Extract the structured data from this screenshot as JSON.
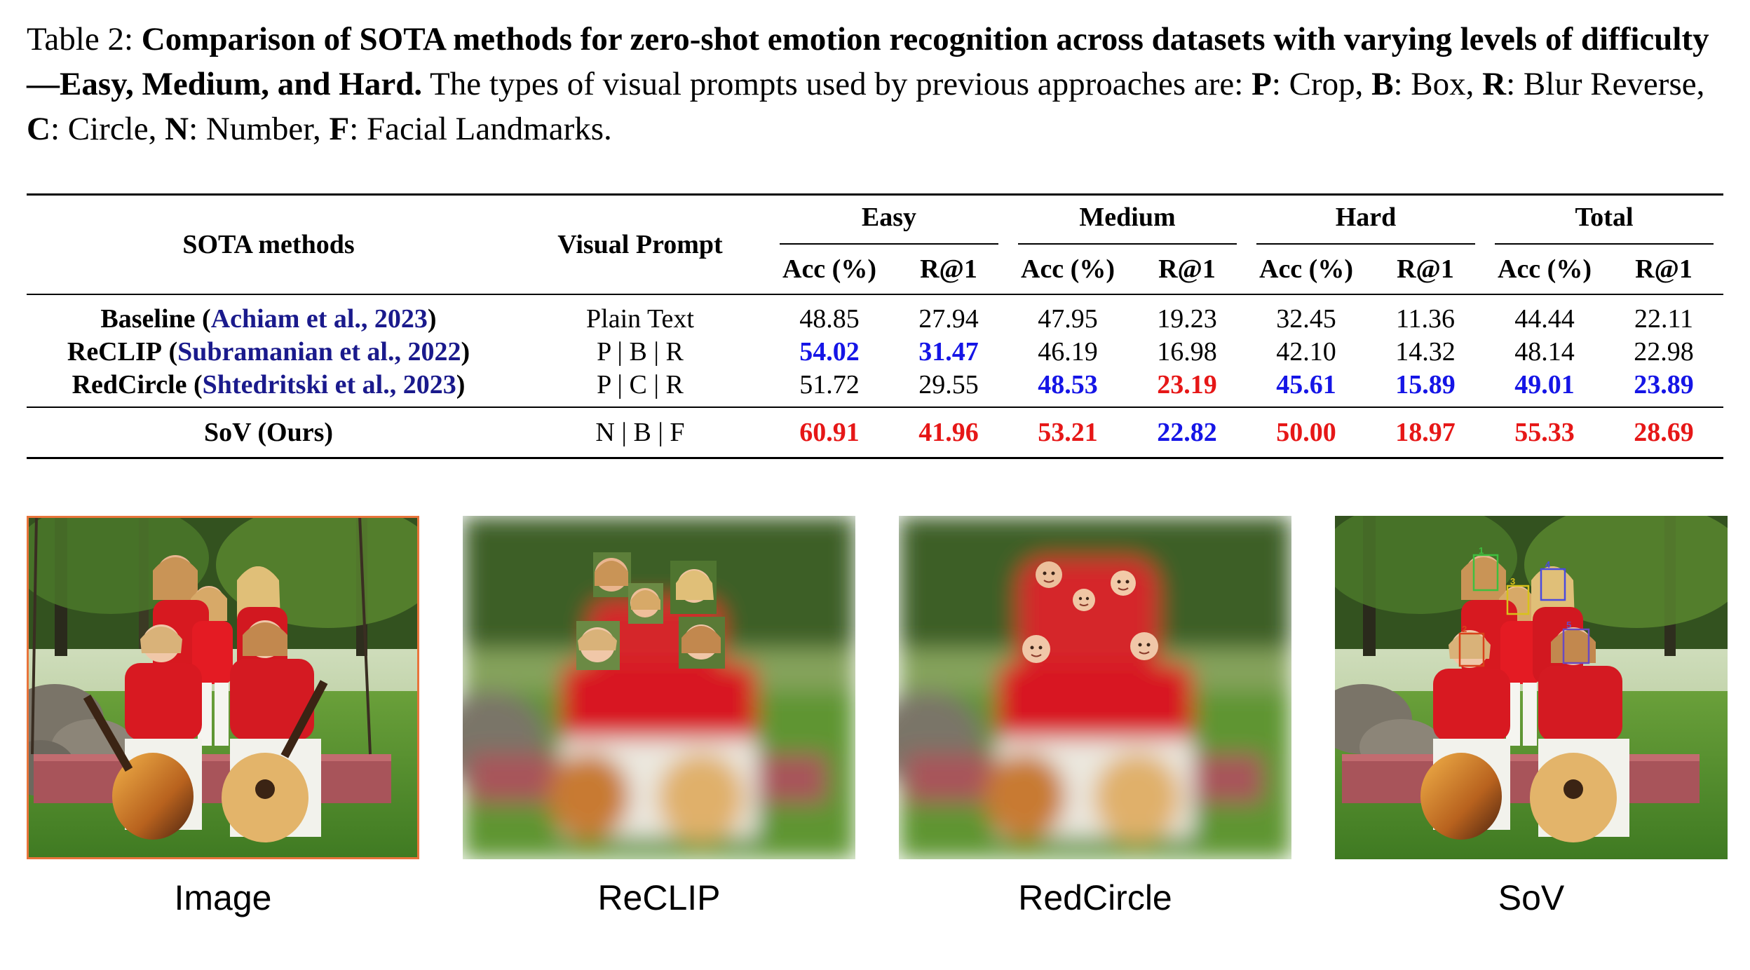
{
  "caption": {
    "label": "Table 2:",
    "bold_text": "Comparison of SOTA methods for zero-shot emotion recognition across datasets with varying levels of difficulty—Easy, Medium, and Hard.",
    "intro_text": "The types of visual prompts used by previous approaches are:",
    "prompt_types": [
      {
        "key": "P",
        "desc": ": Crop,"
      },
      {
        "key": "B",
        "desc": ": Box,"
      },
      {
        "key": "R",
        "desc": ": Blur Reverse,"
      },
      {
        "key": "C",
        "desc": ": Circle,"
      },
      {
        "key": "N",
        "desc": ": Number,"
      },
      {
        "key": "F",
        "desc": ": Facial Landmarks."
      }
    ]
  },
  "table": {
    "col_method": "SOTA methods",
    "col_prompt": "Visual Prompt",
    "groups": [
      "Easy",
      "Medium",
      "Hard",
      "Total"
    ],
    "sub_headers": [
      "Acc (%)",
      "R@1",
      "Acc (%)",
      "R@1",
      "Acc (%)",
      "R@1",
      "Acc (%)",
      "R@1"
    ],
    "rows": [
      {
        "method": "Baseline",
        "cite_pre": "(",
        "cite_text": "Achiam et al., 2023",
        "cite_post": ")",
        "prompt": "Plain Text",
        "values": [
          "48.85",
          "27.94",
          "47.95",
          "19.23",
          "32.45",
          "11.36",
          "44.44",
          "22.11"
        ],
        "styles": [
          "",
          "",
          "",
          "",
          "",
          "",
          "",
          ""
        ]
      },
      {
        "method": "ReCLIP",
        "cite_pre": "(",
        "cite_text": "Subramanian et al., 2022",
        "cite_post": ")",
        "prompt": "P | B | R",
        "values": [
          "54.02",
          "31.47",
          "46.19",
          "16.98",
          "42.10",
          "14.32",
          "48.14",
          "22.98"
        ],
        "styles": [
          "blue",
          "blue",
          "",
          "",
          "",
          "",
          "",
          ""
        ]
      },
      {
        "method": "RedCircle",
        "cite_pre": "(",
        "cite_text": "Shtedritski et al., 2023",
        "cite_post": ")",
        "prompt": "P | C | R",
        "values": [
          "51.72",
          "29.55",
          "48.53",
          "23.19",
          "45.61",
          "15.89",
          "49.01",
          "23.89"
        ],
        "styles": [
          "",
          "",
          "blue",
          "red",
          "blue",
          "blue",
          "blue",
          "blue"
        ]
      }
    ],
    "ours": {
      "method": "SoV (Ours)",
      "prompt": "N | B | F",
      "values": [
        "60.91",
        "41.96",
        "53.21",
        "22.82",
        "50.00",
        "18.97",
        "55.33",
        "28.69"
      ],
      "styles": [
        "red",
        "red",
        "red",
        "blue",
        "red",
        "red",
        "red",
        "red"
      ]
    }
  },
  "figure": {
    "panels": [
      "Image",
      "ReCLIP",
      "RedCircle",
      "SoV"
    ],
    "sov_box_numbers": [
      "1",
      "2",
      "3",
      "4",
      "5"
    ],
    "colors": {
      "highlight_red": "#e61717",
      "highlight_blue": "#1515e6",
      "citation": "#1a1a8c",
      "image_border": "#e8743b"
    }
  }
}
